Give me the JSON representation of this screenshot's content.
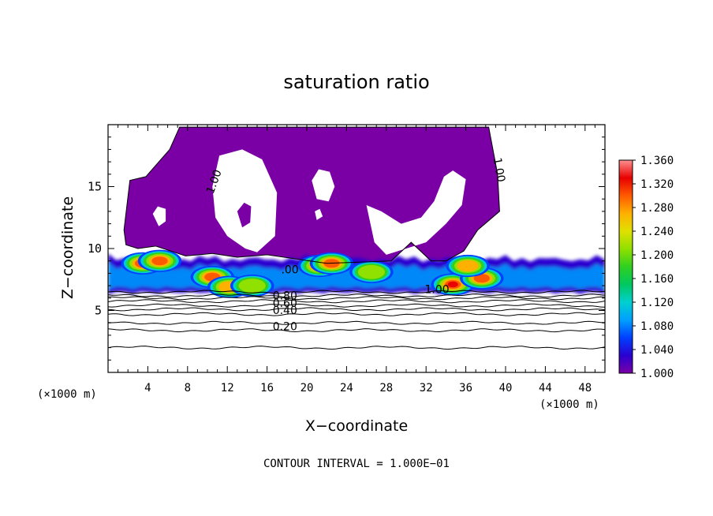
{
  "chart_data": {
    "type": "heatmap",
    "title": "saturation ratio",
    "xlabel": "X−coordinate",
    "ylabel": "Z−coordinate",
    "x_unit_left": "(×1000 m)",
    "x_unit_right": "(×1000 m)",
    "footer": "CONTOUR INTERVAL = 1.000E−01",
    "xlim": [
      0,
      50
    ],
    "ylim": [
      0,
      20
    ],
    "x_ticks": [
      4,
      8,
      12,
      16,
      20,
      24,
      28,
      32,
      36,
      40,
      44,
      48
    ],
    "y_ticks": [
      5,
      10,
      15
    ],
    "colorbar": {
      "min": 1.0,
      "max": 1.36,
      "labels": [
        "1.360",
        "1.320",
        "1.280",
        "1.240",
        "1.200",
        "1.160",
        "1.120",
        "1.080",
        "1.040",
        "1.000"
      ],
      "colors": [
        "#7a00a6",
        "#2a00d0",
        "#0040ff",
        "#00a0ff",
        "#00d0d0",
        "#00c860",
        "#30d020",
        "#90e000",
        "#e0e000",
        "#ffb000",
        "#ff5a00",
        "#e80000",
        "#ff9090"
      ]
    },
    "contour_labels": [
      {
        "text": "1.00",
        "x": 11,
        "z": 15.3,
        "rot": -70
      },
      {
        "text": "1.00",
        "x": 39,
        "z": 16.3,
        "rot": 80
      },
      {
        "text": "0.80",
        "x": 17.8,
        "z": 5.9,
        "rot": 0
      },
      {
        "text": "0.60",
        "x": 17.8,
        "z": 5.3,
        "rot": 0
      },
      {
        "text": "0.40",
        "x": 17.8,
        "z": 4.7,
        "rot": 0
      },
      {
        "text": "0.20",
        "x": 17.8,
        "z": 3.4,
        "rot": 0
      },
      {
        "text": ".00",
        "x": 18.3,
        "z": 8.0,
        "rot": 0
      },
      {
        "text": "1.00",
        "x": 33.1,
        "z": 6.4,
        "rot": 0
      }
    ],
    "supersaturated_cloud_outline": [
      [
        1.6,
        11.5
      ],
      [
        2.2,
        15.5
      ],
      [
        3.8,
        15.8
      ],
      [
        6.2,
        18.0
      ],
      [
        7.2,
        19.8
      ],
      [
        38.3,
        19.8
      ],
      [
        39.2,
        16.0
      ],
      [
        39.4,
        13.0
      ],
      [
        37.2,
        11.5
      ],
      [
        35.8,
        9.8
      ],
      [
        34.0,
        9.0
      ],
      [
        32.5,
        9.0
      ],
      [
        30.5,
        10.5
      ],
      [
        28.5,
        9.0
      ],
      [
        22.0,
        8.8
      ],
      [
        16.0,
        9.5
      ],
      [
        13.0,
        9.3
      ],
      [
        10.5,
        9.6
      ],
      [
        7.8,
        9.4
      ],
      [
        4.8,
        10.2
      ],
      [
        3.0,
        10.0
      ],
      [
        1.8,
        10.3
      ]
    ],
    "subsaturated_holes": [
      [
        [
          10.5,
          15.0
        ],
        [
          11.2,
          17.5
        ],
        [
          13.5,
          18.0
        ],
        [
          15.5,
          17.2
        ],
        [
          17.0,
          14.5
        ],
        [
          16.8,
          11.0
        ],
        [
          15.0,
          9.7
        ],
        [
          13.8,
          10.0
        ],
        [
          12.0,
          11.0
        ],
        [
          10.8,
          12.5
        ]
      ],
      [
        [
          20.5,
          15.5
        ],
        [
          21.2,
          16.4
        ],
        [
          22.3,
          16.2
        ],
        [
          22.8,
          15.0
        ],
        [
          22.2,
          13.8
        ],
        [
          21.0,
          14.0
        ]
      ],
      [
        [
          26.0,
          13.5
        ],
        [
          27.5,
          13.0
        ],
        [
          29.5,
          12.0
        ],
        [
          31.5,
          12.5
        ],
        [
          32.8,
          13.8
        ],
        [
          33.8,
          15.8
        ],
        [
          34.7,
          16.3
        ],
        [
          36.0,
          15.6
        ],
        [
          35.6,
          13.5
        ],
        [
          34.0,
          12.0
        ],
        [
          32.0,
          10.5
        ],
        [
          30.0,
          10.0
        ],
        [
          28.0,
          9.5
        ],
        [
          26.8,
          10.5
        ]
      ],
      [
        [
          4.5,
          12.8
        ],
        [
          5.0,
          13.4
        ],
        [
          5.8,
          13.2
        ],
        [
          5.8,
          12.2
        ],
        [
          5.1,
          11.8
        ]
      ],
      [
        [
          13.0,
          13.0
        ],
        [
          13.7,
          13.7
        ],
        [
          14.4,
          13.4
        ],
        [
          14.3,
          12.1
        ],
        [
          13.5,
          11.7
        ]
      ],
      [
        [
          20.8,
          13.0
        ],
        [
          21.3,
          13.2
        ],
        [
          21.6,
          12.6
        ],
        [
          21.0,
          12.3
        ]
      ]
    ],
    "cloud_layer": {
      "base_z": 6.3,
      "top_z": 9.6,
      "cores": [
        {
          "x": 3.5,
          "z": 8.8,
          "value": 1.3
        },
        {
          "x": 5.2,
          "z": 9.0,
          "value": 1.32
        },
        {
          "x": 10.5,
          "z": 7.7,
          "value": 1.3
        },
        {
          "x": 12.2,
          "z": 6.9,
          "value": 1.28
        },
        {
          "x": 14.5,
          "z": 7.0,
          "value": 1.24
        },
        {
          "x": 21.3,
          "z": 8.6,
          "value": 1.32
        },
        {
          "x": 22.5,
          "z": 8.8,
          "value": 1.3
        },
        {
          "x": 26.5,
          "z": 8.1,
          "value": 1.24
        },
        {
          "x": 34.7,
          "z": 7.1,
          "value": 1.34
        },
        {
          "x": 37.6,
          "z": 7.6,
          "value": 1.32
        },
        {
          "x": 36.2,
          "z": 8.6,
          "value": 1.28
        }
      ]
    }
  }
}
